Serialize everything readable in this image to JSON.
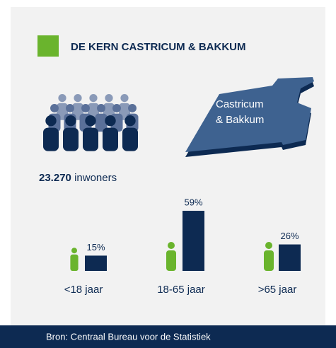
{
  "title": "DE KERN CASTRICUM & BAKKUM",
  "population": {
    "number": "23.270",
    "label": "inwoners"
  },
  "map_label": [
    "Castricum",
    "& Bakkum"
  ],
  "source": "Bron: Centraal Bureau voor de Statistiek",
  "chart_data": {
    "type": "bar",
    "categories": [
      "<18 jaar",
      "18-65 jaar",
      ">65 jaar"
    ],
    "values": [
      15,
      59,
      26
    ],
    "value_labels": [
      "15%",
      "59%",
      "26%"
    ],
    "color": "#0d2a52"
  }
}
